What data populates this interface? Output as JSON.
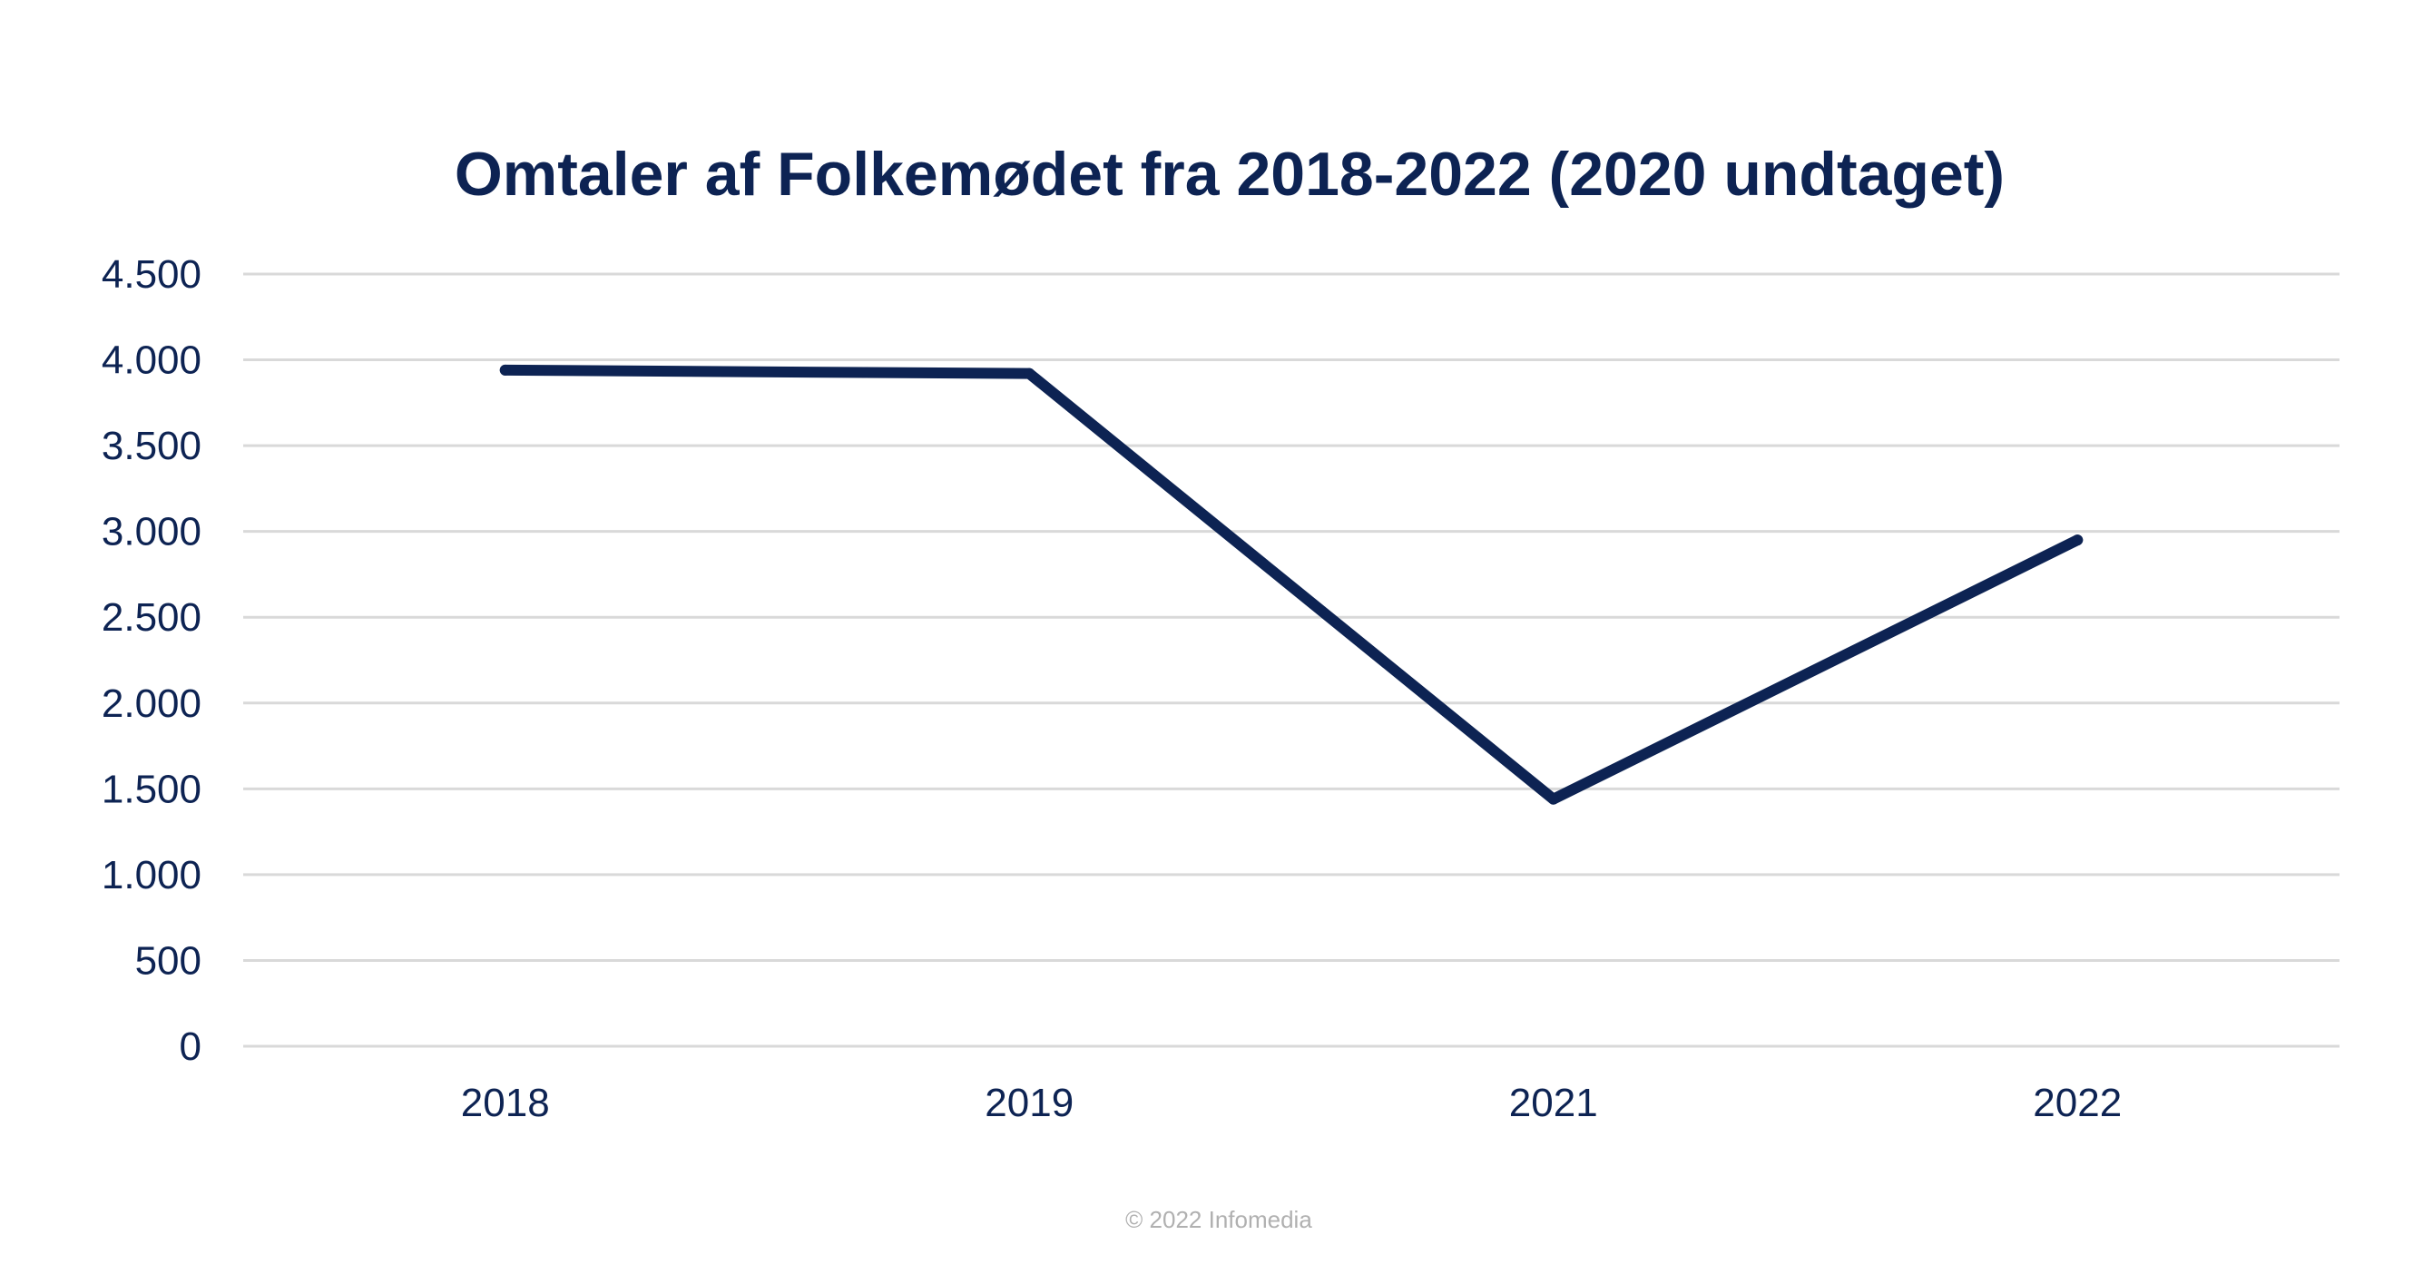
{
  "chart_data": {
    "type": "line",
    "title": "Omtaler af Folkemødet fra 2018-2022 (2020 undtaget)",
    "xlabel": "",
    "ylabel": "",
    "categories": [
      "2018",
      "2019",
      "2021",
      "2022"
    ],
    "series": [
      {
        "values": [
          3940,
          3920,
          1440,
          2950
        ]
      }
    ],
    "ylim": [
      0,
      4500
    ],
    "yticks": [
      0,
      500,
      1000,
      1500,
      2000,
      2500,
      3000,
      3500,
      4000,
      4500
    ],
    "ytick_labels": [
      "0",
      "500",
      "1.000",
      "1.500",
      "2.000",
      "2.500",
      "3.000",
      "3.500",
      "4.000",
      "4.500"
    ],
    "grid": true,
    "legend": "none"
  },
  "footer": {
    "credit": "© 2022 Infomedia"
  },
  "colors": {
    "line": "#0d2353",
    "text": "#0d2353",
    "grid": "#d9d9d9",
    "credit": "#b0b0b0"
  }
}
